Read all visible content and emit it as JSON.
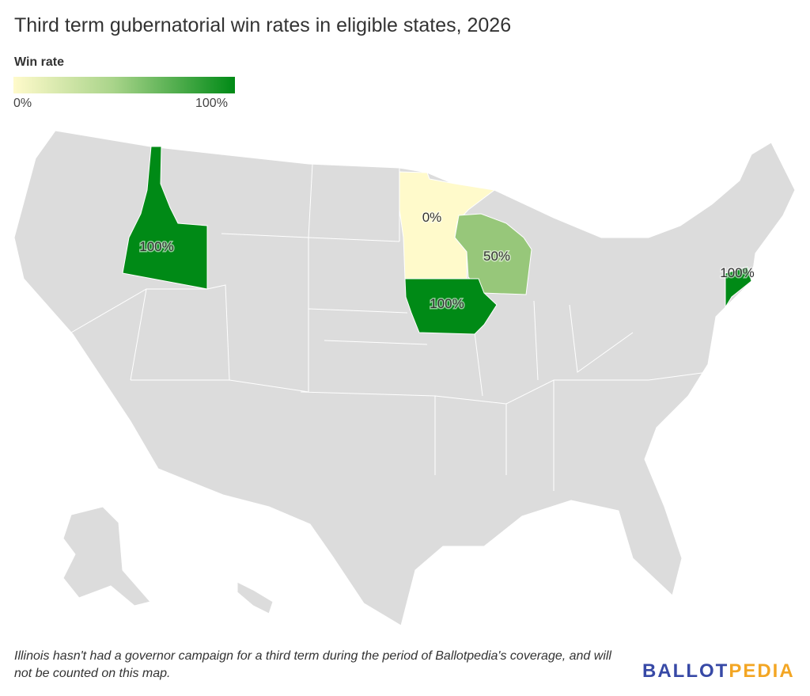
{
  "title": "Third term gubernatorial win rates in eligible states, 2026",
  "legend": {
    "title": "Win rate",
    "min_label": "0%",
    "max_label": "100%",
    "min_color": "#fffacb",
    "max_color": "#008a16"
  },
  "states": [
    {
      "name": "Idaho",
      "value": 100,
      "label": "100%",
      "color": "#008a16"
    },
    {
      "name": "Minnesota",
      "value": 0,
      "label": "0%",
      "color": "#fffacb"
    },
    {
      "name": "Wisconsin",
      "value": 50,
      "label": "50%",
      "color": "#97c77a"
    },
    {
      "name": "Iowa",
      "value": 100,
      "label": "100%",
      "color": "#008a16"
    },
    {
      "name": "Connecticut",
      "value": 100,
      "label": "100%",
      "color": "#008a16"
    }
  ],
  "no_data_color": "#dcdcdc",
  "note": "Illinois hasn't had a governor campaign for a third term during the period of Ballotpedia's coverage, and will not be counted on this map.",
  "logo": {
    "part1": "BALLOT",
    "part2": "PEDIA"
  }
}
